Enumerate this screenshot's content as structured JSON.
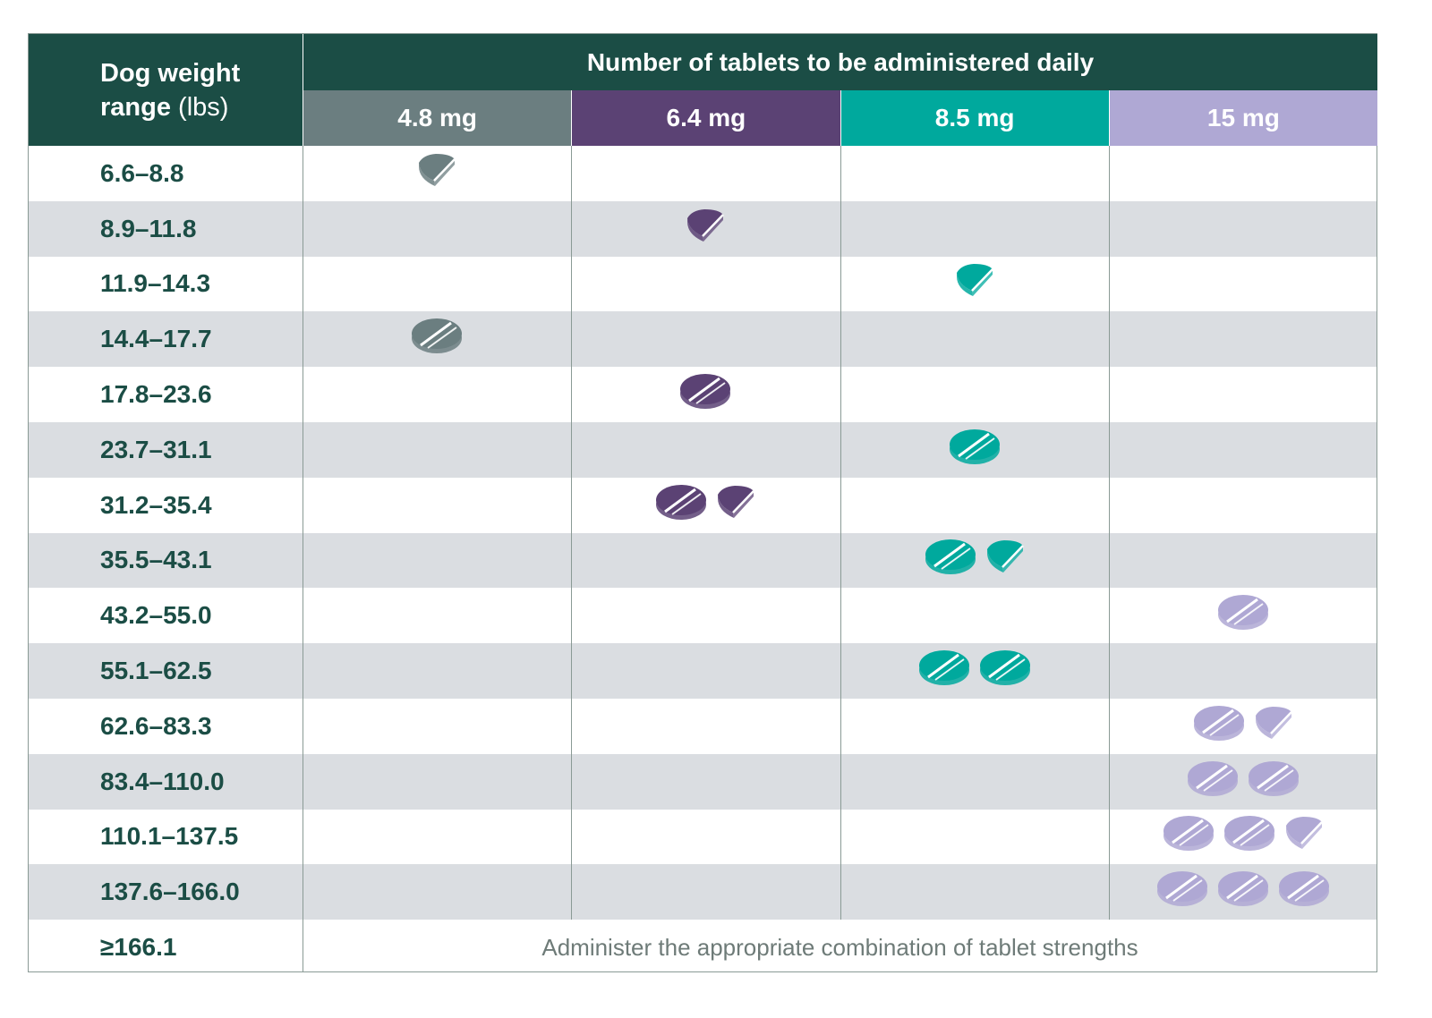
{
  "header": {
    "weight_bold": "Dog weight",
    "weight_line2_bold": "range",
    "weight_unit": "(lbs)",
    "tablets_title": "Number of tablets to be administered daily"
  },
  "strengths": [
    {
      "label": "4.8 mg",
      "color": "#6b7e80"
    },
    {
      "label": "6.4 mg",
      "color": "#5b4274"
    },
    {
      "label": "8.5 mg",
      "color": "#00a99d"
    },
    {
      "label": "15 mg",
      "color": "#afa8d4"
    }
  ],
  "rows": [
    {
      "weight": "6.6–8.8",
      "strength": 0,
      "whole": 0,
      "half": 1
    },
    {
      "weight": "8.9–11.8",
      "strength": 1,
      "whole": 0,
      "half": 1
    },
    {
      "weight": "11.9–14.3",
      "strength": 2,
      "whole": 0,
      "half": 1
    },
    {
      "weight": "14.4–17.7",
      "strength": 0,
      "whole": 1,
      "half": 0
    },
    {
      "weight": "17.8–23.6",
      "strength": 1,
      "whole": 1,
      "half": 0
    },
    {
      "weight": "23.7–31.1",
      "strength": 2,
      "whole": 1,
      "half": 0
    },
    {
      "weight": "31.2–35.4",
      "strength": 1,
      "whole": 1,
      "half": 1
    },
    {
      "weight": "35.5–43.1",
      "strength": 2,
      "whole": 1,
      "half": 1
    },
    {
      "weight": "43.2–55.0",
      "strength": 3,
      "whole": 1,
      "half": 0
    },
    {
      "weight": "55.1–62.5",
      "strength": 2,
      "whole": 2,
      "half": 0
    },
    {
      "weight": "62.6–83.3",
      "strength": 3,
      "whole": 1,
      "half": 1
    },
    {
      "weight": "83.4–110.0",
      "strength": 3,
      "whole": 2,
      "half": 0
    },
    {
      "weight": "110.1–137.5",
      "strength": 3,
      "whole": 2,
      "half": 1
    },
    {
      "weight": "137.6–166.0",
      "strength": 3,
      "whole": 3,
      "half": 0
    }
  ],
  "last_row": {
    "weight": "≥166.1",
    "note": "Administer the appropriate combination of tablet strengths"
  }
}
